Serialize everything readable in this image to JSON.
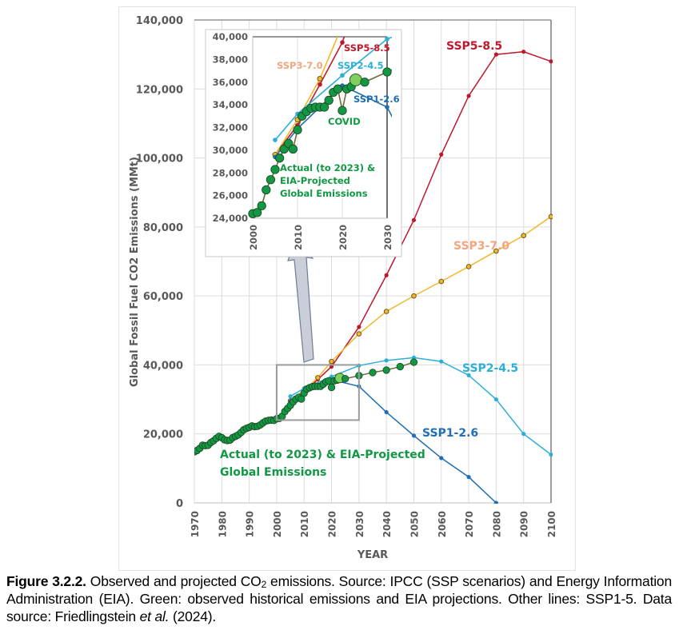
{
  "chart_data": [
    {
      "id": "main",
      "type": "line",
      "title": "",
      "xlabel": "YEAR",
      "ylabel": "Global Fossil Fuel CO2 Emissions (MMt)",
      "xlim": [
        1970,
        2100
      ],
      "ylim": [
        0,
        140000
      ],
      "x_ticks": [
        "1970",
        "1980",
        "1990",
        "2000",
        "2010",
        "2020",
        "2030",
        "2040",
        "2050",
        "2060",
        "2070",
        "2080",
        "2090",
        "2100"
      ],
      "y_ticks": [
        "0",
        "20,000",
        "40,000",
        "60,000",
        "80,000",
        "100,000",
        "120,000",
        "140,000"
      ],
      "grid": true,
      "series": [
        {
          "name": "SSP5-8.5",
          "label": "SSP5-8.5",
          "color": "#c0182b",
          "marker": "dot",
          "x": [
            2005,
            2010,
            2015,
            2020,
            2030,
            2040,
            2050,
            2060,
            2070,
            2080,
            2090,
            2100
          ],
          "y": [
            29600,
            32200,
            35800,
            39500,
            51000,
            66000,
            82000,
            101000,
            118000,
            130000,
            130800,
            128000
          ]
        },
        {
          "name": "SSP3-7.0",
          "label": "SSP3-7.0",
          "color": "#f2b72c",
          "label_color": "#f2a57e",
          "marker": "ring",
          "x": [
            2005,
            2010,
            2015,
            2020,
            2030,
            2040,
            2050,
            2060,
            2070,
            2080,
            2090,
            2100
          ],
          "y": [
            29600,
            32700,
            36300,
            41000,
            49000,
            55500,
            60000,
            64200,
            68500,
            73000,
            77500,
            83000
          ]
        },
        {
          "name": "SSP2-4.5",
          "label": "SSP2-4.5",
          "color": "#2bafd9",
          "marker": "dot",
          "x": [
            2005,
            2010,
            2020,
            2030,
            2040,
            2050,
            2060,
            2070,
            2080,
            2090,
            2100
          ],
          "y": [
            30900,
            33200,
            36600,
            39800,
            41300,
            42100,
            41000,
            37000,
            30000,
            20000,
            14000
          ]
        },
        {
          "name": "SSP1-2.6",
          "label": "SSP1-2.6",
          "color": "#1f6fb2",
          "marker": "dot",
          "x": [
            2005,
            2010,
            2020,
            2030,
            2040,
            2050,
            2060,
            2070,
            2080
          ],
          "y": [
            29400,
            31900,
            35700,
            33800,
            26300,
            19500,
            13000,
            7500,
            0
          ]
        },
        {
          "name": "Actual (to 2023) & EIA-Projected Global Emissions",
          "label_lines": [
            "Actual (to 2023) & EIA-Projected",
            "Global Emissions"
          ],
          "color": "#129845",
          "marker_color": "#129845",
          "highlight_marker_color": "#7ed15d",
          "line_color": "#6b6b3c",
          "marker": "circle",
          "highlight_year": 2023,
          "x": [
            1970,
            1971,
            1972,
            1973,
            1974,
            1975,
            1976,
            1977,
            1978,
            1979,
            1980,
            1981,
            1982,
            1983,
            1984,
            1985,
            1986,
            1987,
            1988,
            1989,
            1990,
            1991,
            1992,
            1993,
            1994,
            1995,
            1996,
            1997,
            1998,
            1999,
            2000,
            2001,
            2002,
            2003,
            2004,
            2005,
            2006,
            2007,
            2008,
            2009,
            2010,
            2011,
            2012,
            2013,
            2014,
            2015,
            2016,
            2017,
            2018,
            2019,
            2020,
            2021,
            2022,
            2023,
            2025,
            2030,
            2035,
            2040,
            2045,
            2050
          ],
          "y": [
            14800,
            15200,
            15800,
            16700,
            16600,
            16700,
            17500,
            18000,
            18700,
            19300,
            18900,
            18300,
            18100,
            18200,
            18900,
            19300,
            19700,
            20400,
            21200,
            21600,
            21900,
            22300,
            22100,
            22200,
            22600,
            23200,
            23700,
            23900,
            24000,
            23900,
            24400,
            24500,
            25100,
            26500,
            27400,
            28300,
            29300,
            30100,
            30600,
            30100,
            31800,
            33000,
            33400,
            33700,
            33800,
            33800,
            33800,
            34400,
            35100,
            35400,
            33500,
            35400,
            35600,
            36200,
            36000,
            36900,
            37800,
            38500,
            39500,
            40800
          ]
        }
      ],
      "annotations": [
        {
          "text": "SSP5-8.5",
          "series": "SSP5-8.5"
        },
        {
          "text": "SSP3-7.0",
          "series": "SSP3-7.0"
        },
        {
          "text": "SSP2-4.5",
          "series": "SSP2-4.5"
        },
        {
          "text": "SSP1-2.6",
          "series": "SSP1-2.6"
        },
        {
          "text": "Actual (to 2023) & EIA-Projected Global Emissions",
          "series": "actual"
        }
      ],
      "zoom_box": {
        "x_range": [
          2000,
          2030
        ],
        "y_range": [
          24000,
          40000
        ]
      }
    },
    {
      "id": "inset",
      "type": "line",
      "title": "",
      "xlim": [
        2000,
        2030
      ],
      "ylim": [
        24000,
        40000
      ],
      "x_ticks": [
        "2000",
        "2010",
        "2020",
        "2030"
      ],
      "y_ticks": [
        "24,000",
        "26,000",
        "28,000",
        "30,000",
        "32,000",
        "34,000",
        "36,000",
        "38,000",
        "40,000"
      ],
      "grid": true,
      "labels": {
        "ssp5": "SSP5-8.5",
        "ssp3": "SSP3-7.0",
        "ssp2": "SSP2-4.5",
        "ssp1": "SSP1-2.6",
        "covid": "COVID",
        "actual_lines": [
          "Actual (to 2023) &",
          "EIA-Projected",
          "Global Emissions"
        ]
      },
      "series_ref": "main"
    }
  ],
  "caption": {
    "figure_number": "Figure 3.2.2.",
    "text_part1": " Observed and projected CO",
    "subscript": "2",
    "text_part2": " emissions. Source: IPCC (SSP scenarios) and Energy Information Administration (EIA). Green: observed historical emissions and EIA projections. Other lines: SSP1-5. Data source: Friedlingstein ",
    "italic": "et al.",
    "text_part3": " (2024)."
  }
}
